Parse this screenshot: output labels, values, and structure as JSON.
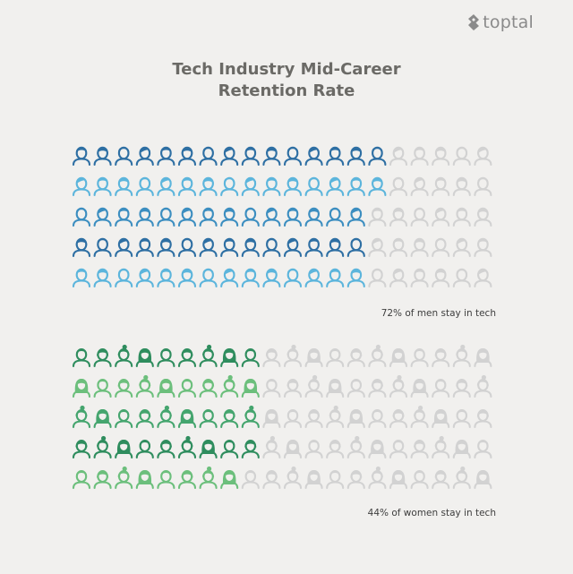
{
  "logo": {
    "text": "toptal",
    "icon": "toptal-diamond-icon"
  },
  "chart_data": [
    {
      "type": "pictograph",
      "title_lines": [
        "Tech Industry Mid-Career",
        "Retention Rate"
      ],
      "name": "men",
      "icon": "man-head-icon",
      "rows": 5,
      "columns": 20,
      "total": 100,
      "highlighted": 72,
      "label": "72% of men stay in tech",
      "colors": {
        "filled": [
          "#2e6fa3",
          "#5cb5dc",
          "#3c8ec0"
        ],
        "empty": "#d2d2d2"
      }
    },
    {
      "type": "pictograph",
      "name": "women",
      "icon": "woman-head-icon",
      "rows": 5,
      "columns": 20,
      "total": 100,
      "highlighted": 44,
      "label": "44% of women stay in tech",
      "colors": {
        "filled": [
          "#2f8d5e",
          "#6cbf7c",
          "#45a56e"
        ],
        "empty": "#d2d2d2"
      }
    }
  ]
}
